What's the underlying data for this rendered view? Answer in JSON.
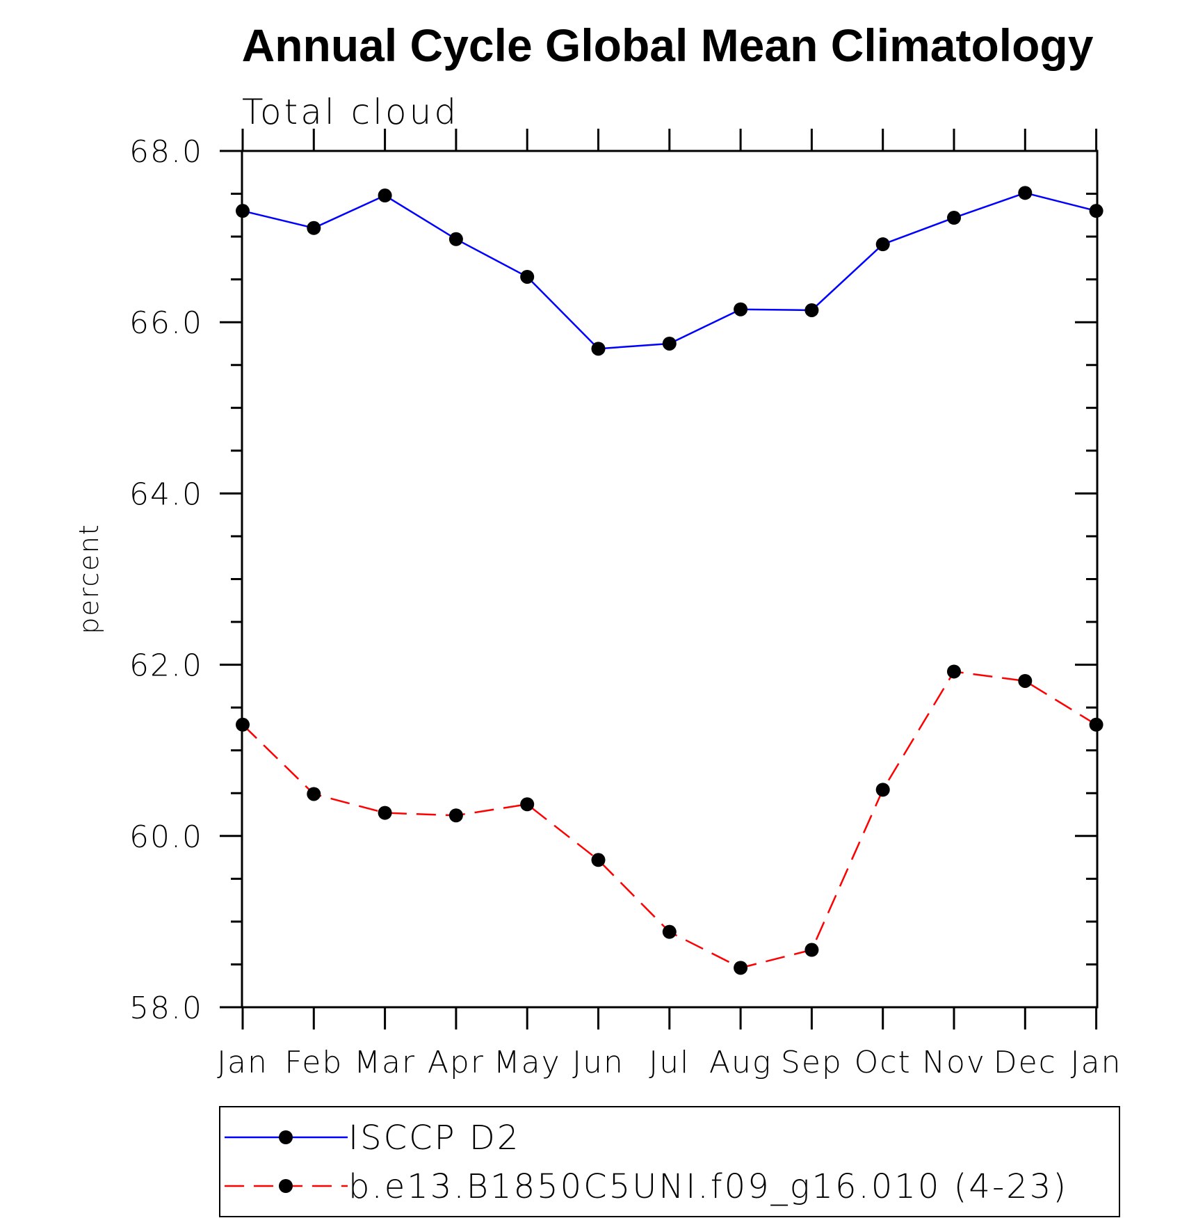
{
  "chart_data": {
    "type": "line",
    "title": "Annual Cycle Global Mean Climatology",
    "subtitle": "Total cloud",
    "xlabel": "",
    "ylabel": "percent",
    "categories": [
      "Jan",
      "Feb",
      "Mar",
      "Apr",
      "May",
      "Jun",
      "Jul",
      "Aug",
      "Sep",
      "Oct",
      "Nov",
      "Dec",
      "Jan"
    ],
    "ylim": [
      58.0,
      68.0
    ],
    "yticks": [
      "58.0",
      "60.0",
      "62.0",
      "64.0",
      "66.0",
      "68.0"
    ],
    "grid": false,
    "legend_position": "bottom",
    "series": [
      {
        "name": "ISCCP D2",
        "color": "#0000ff",
        "dash": "solid",
        "values": [
          67.3,
          67.1,
          67.48,
          66.97,
          66.53,
          65.69,
          65.75,
          66.15,
          66.14,
          66.91,
          67.22,
          67.51,
          67.3
        ]
      },
      {
        "name": "b.e13.B1850C5UNI.f09_g16.010 (4-23)",
        "color": "#ff0000",
        "dash": "dashed",
        "values": [
          61.3,
          60.49,
          60.27,
          60.24,
          60.37,
          59.72,
          58.88,
          58.46,
          58.67,
          60.54,
          61.92,
          61.81,
          61.3
        ]
      }
    ]
  }
}
